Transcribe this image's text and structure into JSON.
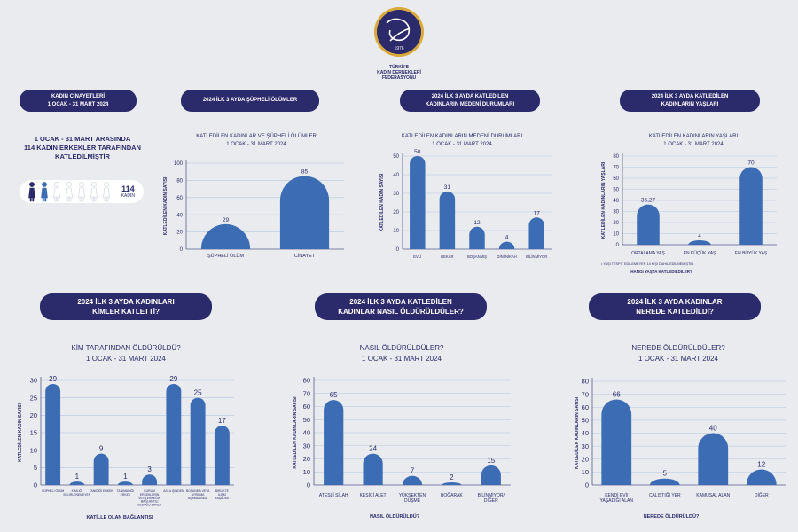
{
  "header": {
    "org_lines": [
      "TÜRKİYE",
      "KADIN DERNEKLERİ",
      "FEDERASYONU"
    ],
    "logo_year": "1976"
  },
  "pills": {
    "p1": [
      "KADIN CİNAYETLERİ",
      "1 OCAK - 31 MART 2024"
    ],
    "p2": [
      "2024 İLK 3 AYDA ŞÜPHELİ ÖLÜMLER"
    ],
    "p3": [
      "2024 İLK 3 AYDA KATLEDİLEN",
      "KADINLARIN MEDENİ DURUMLARI"
    ],
    "p4": [
      "2024 İLK 3 AYDA  KATLEDİLEN",
      "KADINLARIN YAŞLARI"
    ],
    "p5": [
      "2024 İLK 3 AYDA KADINLARI",
      "KİMLER KATLETTİ?"
    ],
    "p6": [
      "2024 İLK 3 AYDA KATLEDİLEN",
      "KADINLAR NASIL ÖLDÜRÜLDÜLER?"
    ],
    "p7": [
      "2024 İLK 3 AYDA KADINLAR",
      "NEREDE KATLEDİLDİ?"
    ]
  },
  "summary": {
    "lines": [
      "1 OCAK - 31 MART ARASINDA",
      "114 KADIN ERKEKLER TARAFINDAN",
      "KATLEDİLMİŞTİR"
    ],
    "count": "114",
    "count_unit": "KADIN"
  },
  "colors": {
    "navy": "#2b2a6b",
    "bar": "#3b6cb4",
    "background": "#e9ebee",
    "grid": "#b9c6dd",
    "figure_dark": "#2b2a6b",
    "figure_blue": "#3b6cb4",
    "figure_light": "#ffffff"
  },
  "chart_data": [
    {
      "id": "c1",
      "type": "bar",
      "title": [
        "KATLEDİLEN KADINLAR VE ŞÜPHELİ ÖLÜMLER",
        "1 OCAK - 31 MART 2024"
      ],
      "ylabel": "KATLEDİLEN KADIN SAYISI",
      "xlabel": "",
      "ylim": [
        0,
        100
      ],
      "yticks": [
        0,
        20,
        40,
        60,
        80,
        100
      ],
      "categories": [
        "ŞÜPHELİ ÖLÜM",
        "CİNAYET"
      ],
      "values": [
        29,
        85
      ],
      "value_labels": [
        "29",
        "85"
      ],
      "bar_style": "dome-wide"
    },
    {
      "id": "c2",
      "type": "bar",
      "title": [
        "KATLEDİLEN KADINLARIN MEDENİ DURUMLARI",
        "1 OCAK - 31 MART 2024"
      ],
      "ylabel": "KATLEDİLEN KADIN SAYISI",
      "xlabel": "",
      "ylim": [
        0,
        50
      ],
      "yticks": [
        0,
        10,
        20,
        30,
        40,
        50
      ],
      "categories": [
        "EVLİ",
        "BEKAR",
        "BOŞANMIŞ",
        "DİNİ NİKAH",
        "BİLİNMİYOR"
      ],
      "values": [
        50,
        31,
        12,
        4,
        17
      ],
      "value_labels": [
        "50",
        "31",
        "12",
        "4",
        "17"
      ],
      "bar_style": "round"
    },
    {
      "id": "c3",
      "type": "bar",
      "title": [
        "KATLEDİLEN KADINLARIN YAŞLARI",
        "1 OCAK - 31 MART 2024"
      ],
      "ylabel": "KATLEDİLEN KADINLARIN YAŞLARI",
      "xlabel": "",
      "ylim": [
        0,
        80
      ],
      "yticks": [
        0,
        10,
        20,
        30,
        40,
        50,
        60,
        70,
        80
      ],
      "categories": [
        "ORTALAMA YAŞ",
        "EN KÜÇÜK YAŞ",
        "EN BÜYÜK YAŞ"
      ],
      "values": [
        36.27,
        4,
        70
      ],
      "value_labels": [
        "36,27",
        "4",
        "70"
      ],
      "notes": [
        "• YAŞI TESPİT EDİLEMEYEN 14 KİŞİ DAHİL EDİLMEMİŞTİR.",
        "HANGİ YAŞTA KATLEDİLDİLER?"
      ],
      "bar_style": "dome"
    },
    {
      "id": "c4",
      "type": "bar",
      "title": [
        "KİM TARAFINDAN ÖLDÜRÜLDÜ?",
        "1 OCAK - 31 MART 2024"
      ],
      "ylabel": "KATLEDİLEN KADIN SAYISI",
      "xlabel": "KATİLLE OLAN BAĞLANTISI",
      "ylim": [
        0,
        30
      ],
      "yticks": [
        0,
        5,
        10,
        15,
        20,
        25,
        30
      ],
      "categories": [
        "ŞÜPHELİ ÖLÜM",
        "KİMLİĞİ BELİRLENEMEYEN",
        "TANIDIĞI ERKEK",
        "TANIMADIĞI ERKEK",
        "KURUM ERKEKLERİN VEYA ERKEĞİN BAĞLANTILI OLDUĞU ERKEK",
        "ASLA İŞİNDEN",
        "BOŞANMA VEYA AYRILMA AŞAMASINDA",
        "BİRLİKTE İLİŞKİ YAŞADIĞI"
      ],
      "values": [
        29,
        1,
        9,
        1,
        3,
        29,
        25,
        17
      ],
      "value_labels": [
        "29",
        "1",
        "9",
        "1",
        "3",
        "29",
        "25",
        "17"
      ],
      "bar_style": "round"
    },
    {
      "id": "c5",
      "type": "bar",
      "title": [
        "NASIL ÖLDÜRÜLDÜLER?",
        "1 OCAK - 31 MART 2024"
      ],
      "ylabel": "KATLEDİLEN KADINLARIN SAYISI",
      "xlabel": "NASIL ÖLDÜRÜLDÜ?",
      "ylim": [
        0,
        80
      ],
      "yticks": [
        0,
        10,
        20,
        30,
        40,
        50,
        60,
        70,
        80
      ],
      "categories": [
        "ATEŞLİ SİLAH",
        "KESİCİ ALET",
        "YÜKSEKTEN DÜŞME",
        "BOĞARAK",
        "BİLİNMİYOR/ DİĞER"
      ],
      "values": [
        65,
        24,
        7,
        2,
        15
      ],
      "value_labels": [
        "65",
        "24",
        "7",
        "2",
        "15"
      ],
      "bar_style": "round"
    },
    {
      "id": "c6",
      "type": "bar",
      "title": [
        "NEREDE ÖLDÜRÜLDÜLER?",
        "1 OCAK - 31 MART 2024"
      ],
      "ylabel": "KATLEDİLEN KADINLARIN SAYISI",
      "xlabel": "NEREDE ÖLDÜRÜLDÜ?",
      "ylim": [
        0,
        80
      ],
      "yticks": [
        0,
        10,
        20,
        30,
        40,
        50,
        60,
        70,
        80
      ],
      "categories": [
        "KENDİ EVİ/ YAŞADIĞI ALAN",
        "ÇALIŞTIĞI YER",
        "KAMUSAL ALAN",
        "DİĞER"
      ],
      "values": [
        66,
        5,
        40,
        12
      ],
      "value_labels": [
        "66",
        "5",
        "40",
        "12"
      ],
      "bar_style": "dome"
    }
  ]
}
